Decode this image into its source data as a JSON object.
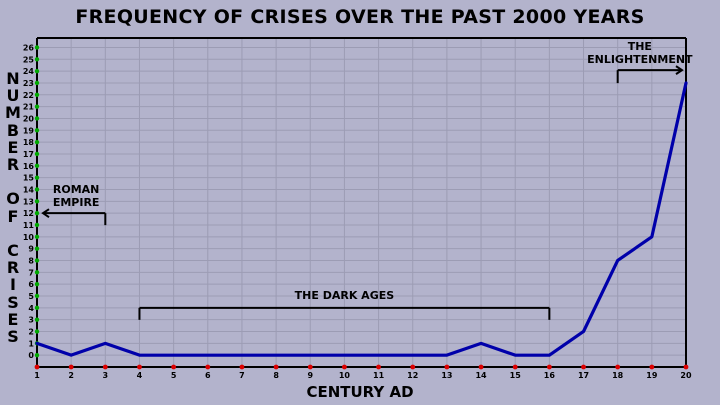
{
  "chart_data": {
    "type": "line",
    "title": "FREQUENCY OF CRISES OVER THE PAST 2000 YEARS",
    "xlabel": "CENTURY AD",
    "ylabel": "NUMBER OF CRISES",
    "x": [
      1,
      2,
      3,
      4,
      5,
      6,
      7,
      8,
      9,
      10,
      11,
      12,
      13,
      14,
      15,
      16,
      17,
      18,
      19,
      20
    ],
    "series": [
      {
        "values": [
          1,
          0,
          1,
          0,
          0,
          0,
          0,
          0,
          0,
          0,
          0,
          0,
          0,
          1,
          0,
          0,
          2,
          8,
          10,
          23
        ]
      }
    ],
    "xlim": [
      1,
      20
    ],
    "ylim": [
      0,
      26
    ],
    "x_ticks": [
      "1",
      "2",
      "3",
      "4",
      "5",
      "6",
      "7",
      "8",
      "9",
      "10",
      "11",
      "12",
      "13",
      "14",
      "15",
      "16",
      "17",
      "18",
      "19",
      "20"
    ],
    "y_ticks": [
      "0",
      "1",
      "2",
      "3",
      "4",
      "5",
      "6",
      "7",
      "8",
      "9",
      "10",
      "11",
      "12",
      "13",
      "14",
      "15",
      "16",
      "17",
      "18",
      "19",
      "20",
      "21",
      "22",
      "23",
      "24",
      "25",
      "26"
    ],
    "grid": true,
    "line_color": "#0000aa",
    "annotations": [
      {
        "text": "ROMAN\nEMPIRE",
        "bracket_x": [
          1,
          3
        ],
        "bracket_y": 12,
        "arrow": "left"
      },
      {
        "text": "THE DARK AGES",
        "bracket_x": [
          4,
          16
        ],
        "bracket_y": 4,
        "arrow": "none"
      },
      {
        "text": "THE\nENLIGHTENMENT",
        "bracket_x": [
          18,
          20
        ],
        "bracket_y": 24,
        "arrow": "right"
      }
    ]
  }
}
